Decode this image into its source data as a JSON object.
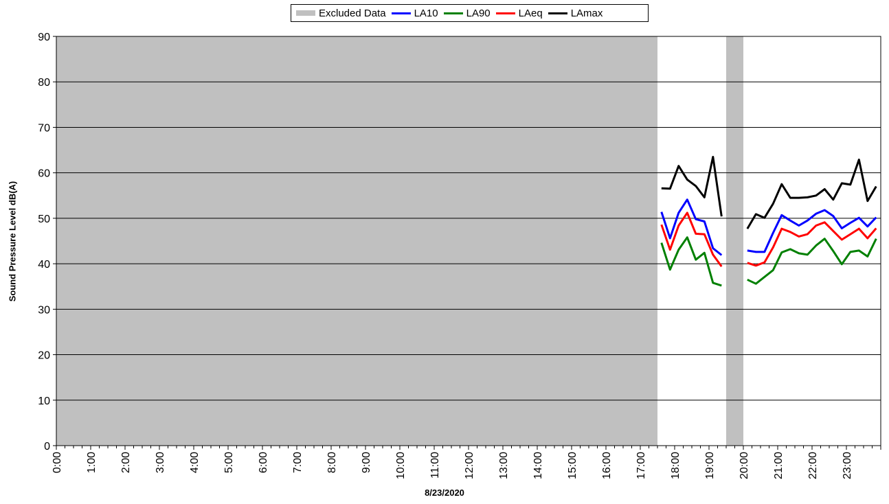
{
  "chart_data": {
    "type": "line",
    "xlabel": "8/23/2020",
    "ylabel": "Sound Pressure Level dB(A)",
    "ylim": [
      0,
      90
    ],
    "yticks": [
      0,
      10,
      20,
      30,
      40,
      50,
      60,
      70,
      80,
      90
    ],
    "xlim": [
      "0:00",
      "24:00"
    ],
    "xtick_labels": [
      "0:00",
      "1:00",
      "2:00",
      "3:00",
      "4:00",
      "5:00",
      "6:00",
      "7:00",
      "8:00",
      "9:00",
      "10:00",
      "11:00",
      "12:00",
      "13:00",
      "14:00",
      "15:00",
      "16:00",
      "17:00",
      "18:00",
      "19:00",
      "20:00",
      "21:00",
      "22:00",
      "23:00"
    ],
    "interval_minutes": 15,
    "grid": "horizontal",
    "legend_position": "top",
    "excluded_label": "Excluded Data",
    "excluded_color": "#c0c0c0",
    "excluded_ranges": [
      [
        "0:00",
        "17:30"
      ],
      [
        "19:30",
        "20:00"
      ]
    ],
    "series": [
      {
        "name": "LA10",
        "color": "#0000ff",
        "segments": [
          {
            "x": [
              "17:37",
              "17:52",
              "18:07",
              "18:22",
              "18:37",
              "18:52",
              "19:07",
              "19:22"
            ],
            "y": [
              51.4,
              45.6,
              51.2,
              54.1,
              49.8,
              49.3,
              43.4,
              41.9
            ]
          },
          {
            "x": [
              "20:07",
              "20:22",
              "20:37",
              "20:52",
              "21:07",
              "21:22",
              "21:37",
              "21:52",
              "22:07",
              "22:22",
              "22:37",
              "22:52",
              "23:07",
              "23:22",
              "23:37",
              "23:52"
            ],
            "y": [
              42.9,
              42.6,
              42.6,
              46.8,
              50.7,
              49.5,
              48.4,
              49.5,
              51.0,
              51.8,
              50.5,
              47.8,
              49.0,
              50.1,
              48.2,
              50.2
            ]
          }
        ]
      },
      {
        "name": "LA90",
        "color": "#008000",
        "segments": [
          {
            "x": [
              "17:37",
              "17:52",
              "18:07",
              "18:22",
              "18:37",
              "18:52",
              "19:07",
              "19:22"
            ],
            "y": [
              44.6,
              38.7,
              43.1,
              45.8,
              40.9,
              42.4,
              35.8,
              35.2
            ]
          },
          {
            "x": [
              "20:07",
              "20:22",
              "20:37",
              "20:52",
              "21:07",
              "21:22",
              "21:37",
              "21:52",
              "22:07",
              "22:22",
              "22:37",
              "22:52",
              "23:07",
              "23:22",
              "23:37",
              "23:52"
            ],
            "y": [
              36.5,
              35.6,
              37.1,
              38.6,
              42.5,
              43.2,
              42.3,
              42.0,
              44.0,
              45.5,
              42.8,
              39.9,
              42.6,
              42.9,
              41.6,
              45.5
            ]
          }
        ]
      },
      {
        "name": "LAeq",
        "color": "#ff0000",
        "segments": [
          {
            "x": [
              "17:37",
              "17:52",
              "18:07",
              "18:22",
              "18:37",
              "18:52",
              "19:07",
              "19:22"
            ],
            "y": [
              48.6,
              43.1,
              48.4,
              51.2,
              46.6,
              46.5,
              42.0,
              39.4
            ]
          },
          {
            "x": [
              "20:07",
              "20:22",
              "20:37",
              "20:52",
              "21:07",
              "21:22",
              "21:37",
              "21:52",
              "22:07",
              "22:22",
              "22:37",
              "22:52",
              "23:07",
              "23:22",
              "23:37",
              "23:52"
            ],
            "y": [
              40.2,
              39.6,
              40.3,
              43.6,
              47.7,
              47.0,
              46.0,
              46.5,
              48.4,
              49.1,
              47.2,
              45.3,
              46.5,
              47.7,
              45.6,
              47.8
            ]
          }
        ]
      },
      {
        "name": "LAmax",
        "color": "#000000",
        "segments": [
          {
            "x": [
              "17:37",
              "17:52",
              "18:07",
              "18:22",
              "18:37",
              "18:52",
              "19:07",
              "19:22"
            ],
            "y": [
              56.6,
              56.5,
              61.5,
              58.5,
              57.1,
              54.6,
              63.5,
              50.4
            ]
          },
          {
            "x": [
              "20:07",
              "20:22",
              "20:37",
              "20:52",
              "21:07",
              "21:22",
              "21:37",
              "21:52",
              "22:07",
              "22:22",
              "22:37",
              "22:52",
              "23:07",
              "23:22",
              "23:37",
              "23:52"
            ],
            "y": [
              47.7,
              50.9,
              50.1,
              53.2,
              57.5,
              54.5,
              54.5,
              54.6,
              55.0,
              56.4,
              54.1,
              57.7,
              57.4,
              62.9,
              53.8,
              57.0
            ]
          }
        ]
      }
    ]
  }
}
